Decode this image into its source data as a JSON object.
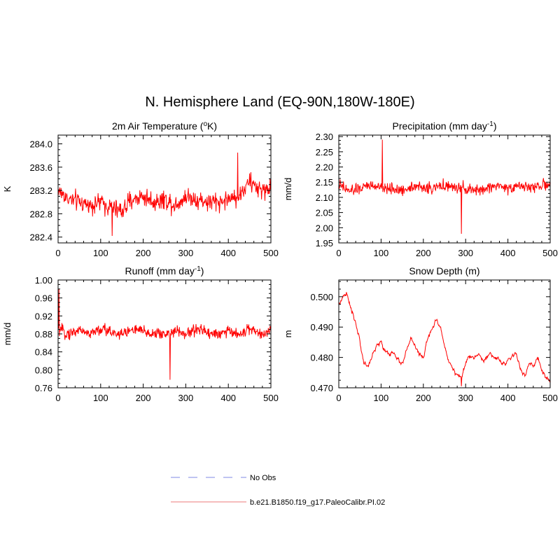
{
  "figure": {
    "title": "N. Hemisphere Land (EQ-90N,180W-180E)"
  },
  "legend": {
    "entries": [
      {
        "label": "No Obs",
        "color": "#aab0ee",
        "style": "dashed"
      },
      {
        "label": "b.e21.B1850.f19_g17.PaleoCalibr.PI.02",
        "color": "#f4a6a6",
        "style": "solid"
      }
    ]
  },
  "colors": {
    "series": "#ff0000",
    "axis": "#000000"
  },
  "chart_data": [
    {
      "type": "line",
      "title": "2m Air Temperature (",
      "title_sup": "o",
      "title_tail": "K)",
      "ylabel": "K",
      "xlim": [
        0,
        500
      ],
      "ylim": [
        282.3,
        284.15
      ],
      "xticks": [
        0,
        100,
        200,
        300,
        400,
        500
      ],
      "yticks": [
        282.4,
        282.8,
        283.2,
        283.6,
        284.0
      ],
      "ytick_labels": [
        "282.4",
        "282.8",
        "283.2",
        "283.6",
        "284.0"
      ],
      "series": [
        {
          "name": "b.e21.B1850.f19_g17.PaleoCalibr.PI.02",
          "x_step": 25,
          "values": [
            283.2,
            283.05,
            283.0,
            282.95,
            283.0,
            282.9,
            282.85,
            283.05,
            283.1,
            283.0,
            283.05,
            282.95,
            283.1,
            283.05,
            283.0,
            283.0,
            283.05,
            283.1,
            283.35,
            283.2,
            283.25
          ]
        }
      ],
      "key_points": {
        "min": {
          "x": 127,
          "y": 282.42
        },
        "max": {
          "x": 422,
          "y": 283.85
        }
      }
    },
    {
      "type": "line",
      "title": "Precipitation (mm day",
      "title_sup": "-1",
      "title_tail": ")",
      "ylabel": "mm/d",
      "xlim": [
        0,
        500
      ],
      "ylim": [
        1.95,
        2.305
      ],
      "xticks": [
        0,
        100,
        200,
        300,
        400,
        500
      ],
      "yticks": [
        1.95,
        2.0,
        2.05,
        2.1,
        2.15,
        2.2,
        2.25,
        2.3
      ],
      "ytick_labels": [
        "1.95",
        "2.00",
        "2.05",
        "2.10",
        "2.15",
        "2.20",
        "2.25",
        "2.30"
      ],
      "series": [
        {
          "name": "b.e21.B1850.f19_g17.PaleoCalibr.PI.02",
          "x_step": 25,
          "values": [
            2.14,
            2.12,
            2.13,
            2.14,
            2.13,
            2.13,
            2.12,
            2.14,
            2.13,
            2.13,
            2.14,
            2.13,
            2.13,
            2.12,
            2.13,
            2.14,
            2.13,
            2.14,
            2.13,
            2.14,
            2.14
          ]
        }
      ],
      "key_points": {
        "min": {
          "x": 290,
          "y": 1.98
        },
        "max": {
          "x": 103,
          "y": 2.29
        }
      }
    },
    {
      "type": "line",
      "title": "Runoff (mm day",
      "title_sup": "-1",
      "title_tail": ")",
      "ylabel": "mm/d",
      "xlim": [
        0,
        500
      ],
      "ylim": [
        0.76,
        1.0
      ],
      "xticks": [
        0,
        100,
        200,
        300,
        400,
        500
      ],
      "yticks": [
        0.76,
        0.8,
        0.84,
        0.88,
        0.92,
        0.96,
        1.0
      ],
      "ytick_labels": [
        "0.76",
        "0.80",
        "0.84",
        "0.88",
        "0.92",
        "0.96",
        "1.00"
      ],
      "series": [
        {
          "name": "b.e21.B1850.f19_g17.PaleoCalibr.PI.02",
          "x_step": 25,
          "values": [
            0.89,
            0.88,
            0.89,
            0.88,
            0.89,
            0.885,
            0.88,
            0.89,
            0.885,
            0.88,
            0.88,
            0.885,
            0.88,
            0.89,
            0.885,
            0.88,
            0.885,
            0.88,
            0.89,
            0.88,
            0.89
          ]
        }
      ],
      "key_points": {
        "min": {
          "x": 263,
          "y": 0.778
        },
        "max": {
          "x": 2,
          "y": 0.98
        }
      }
    },
    {
      "type": "line",
      "title": "Snow Depth (m)",
      "title_sup": "",
      "title_tail": "",
      "ylabel": "m",
      "xlim": [
        0,
        500
      ],
      "ylim": [
        0.47,
        0.5055
      ],
      "xticks": [
        0,
        100,
        200,
        300,
        400,
        500
      ],
      "yticks": [
        0.47,
        0.48,
        0.49,
        0.5
      ],
      "ytick_labels": [
        "0.470",
        "0.480",
        "0.490",
        "0.500"
      ],
      "series": [
        {
          "name": "b.e21.B1850.f19_g17.PaleoCalibr.PI.02",
          "x_step": 10,
          "values": [
            0.497,
            0.5,
            0.5005,
            0.495,
            0.4915,
            0.485,
            0.478,
            0.477,
            0.481,
            0.484,
            0.485,
            0.482,
            0.481,
            0.482,
            0.479,
            0.478,
            0.482,
            0.486,
            0.484,
            0.481,
            0.48,
            0.486,
            0.489,
            0.492,
            0.49,
            0.484,
            0.479,
            0.476,
            0.474,
            0.473,
            0.478,
            0.481,
            0.48,
            0.481,
            0.479,
            0.48,
            0.481,
            0.48,
            0.479,
            0.478,
            0.479,
            0.48,
            0.481,
            0.476,
            0.474,
            0.478,
            0.477,
            0.48,
            0.476,
            0.473,
            0.472
          ]
        }
      ],
      "key_points": {
        "max": {
          "x": 18,
          "y": 0.5015
        },
        "min": {
          "x": 290,
          "y": 0.4705
        }
      }
    }
  ]
}
